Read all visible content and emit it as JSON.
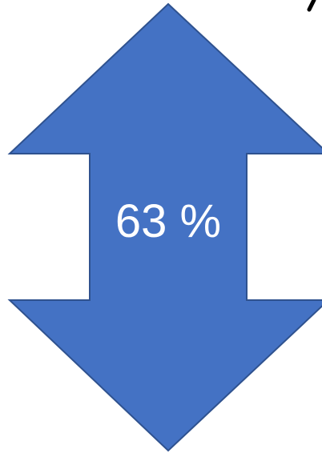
{
  "diagram": {
    "label": "63 %",
    "colors": {
      "fill": "#4472C4",
      "stroke": "#2F528F",
      "text": "#FFFFFF",
      "background": "#FFFFFF"
    },
    "shape": "up-down-arrow"
  }
}
